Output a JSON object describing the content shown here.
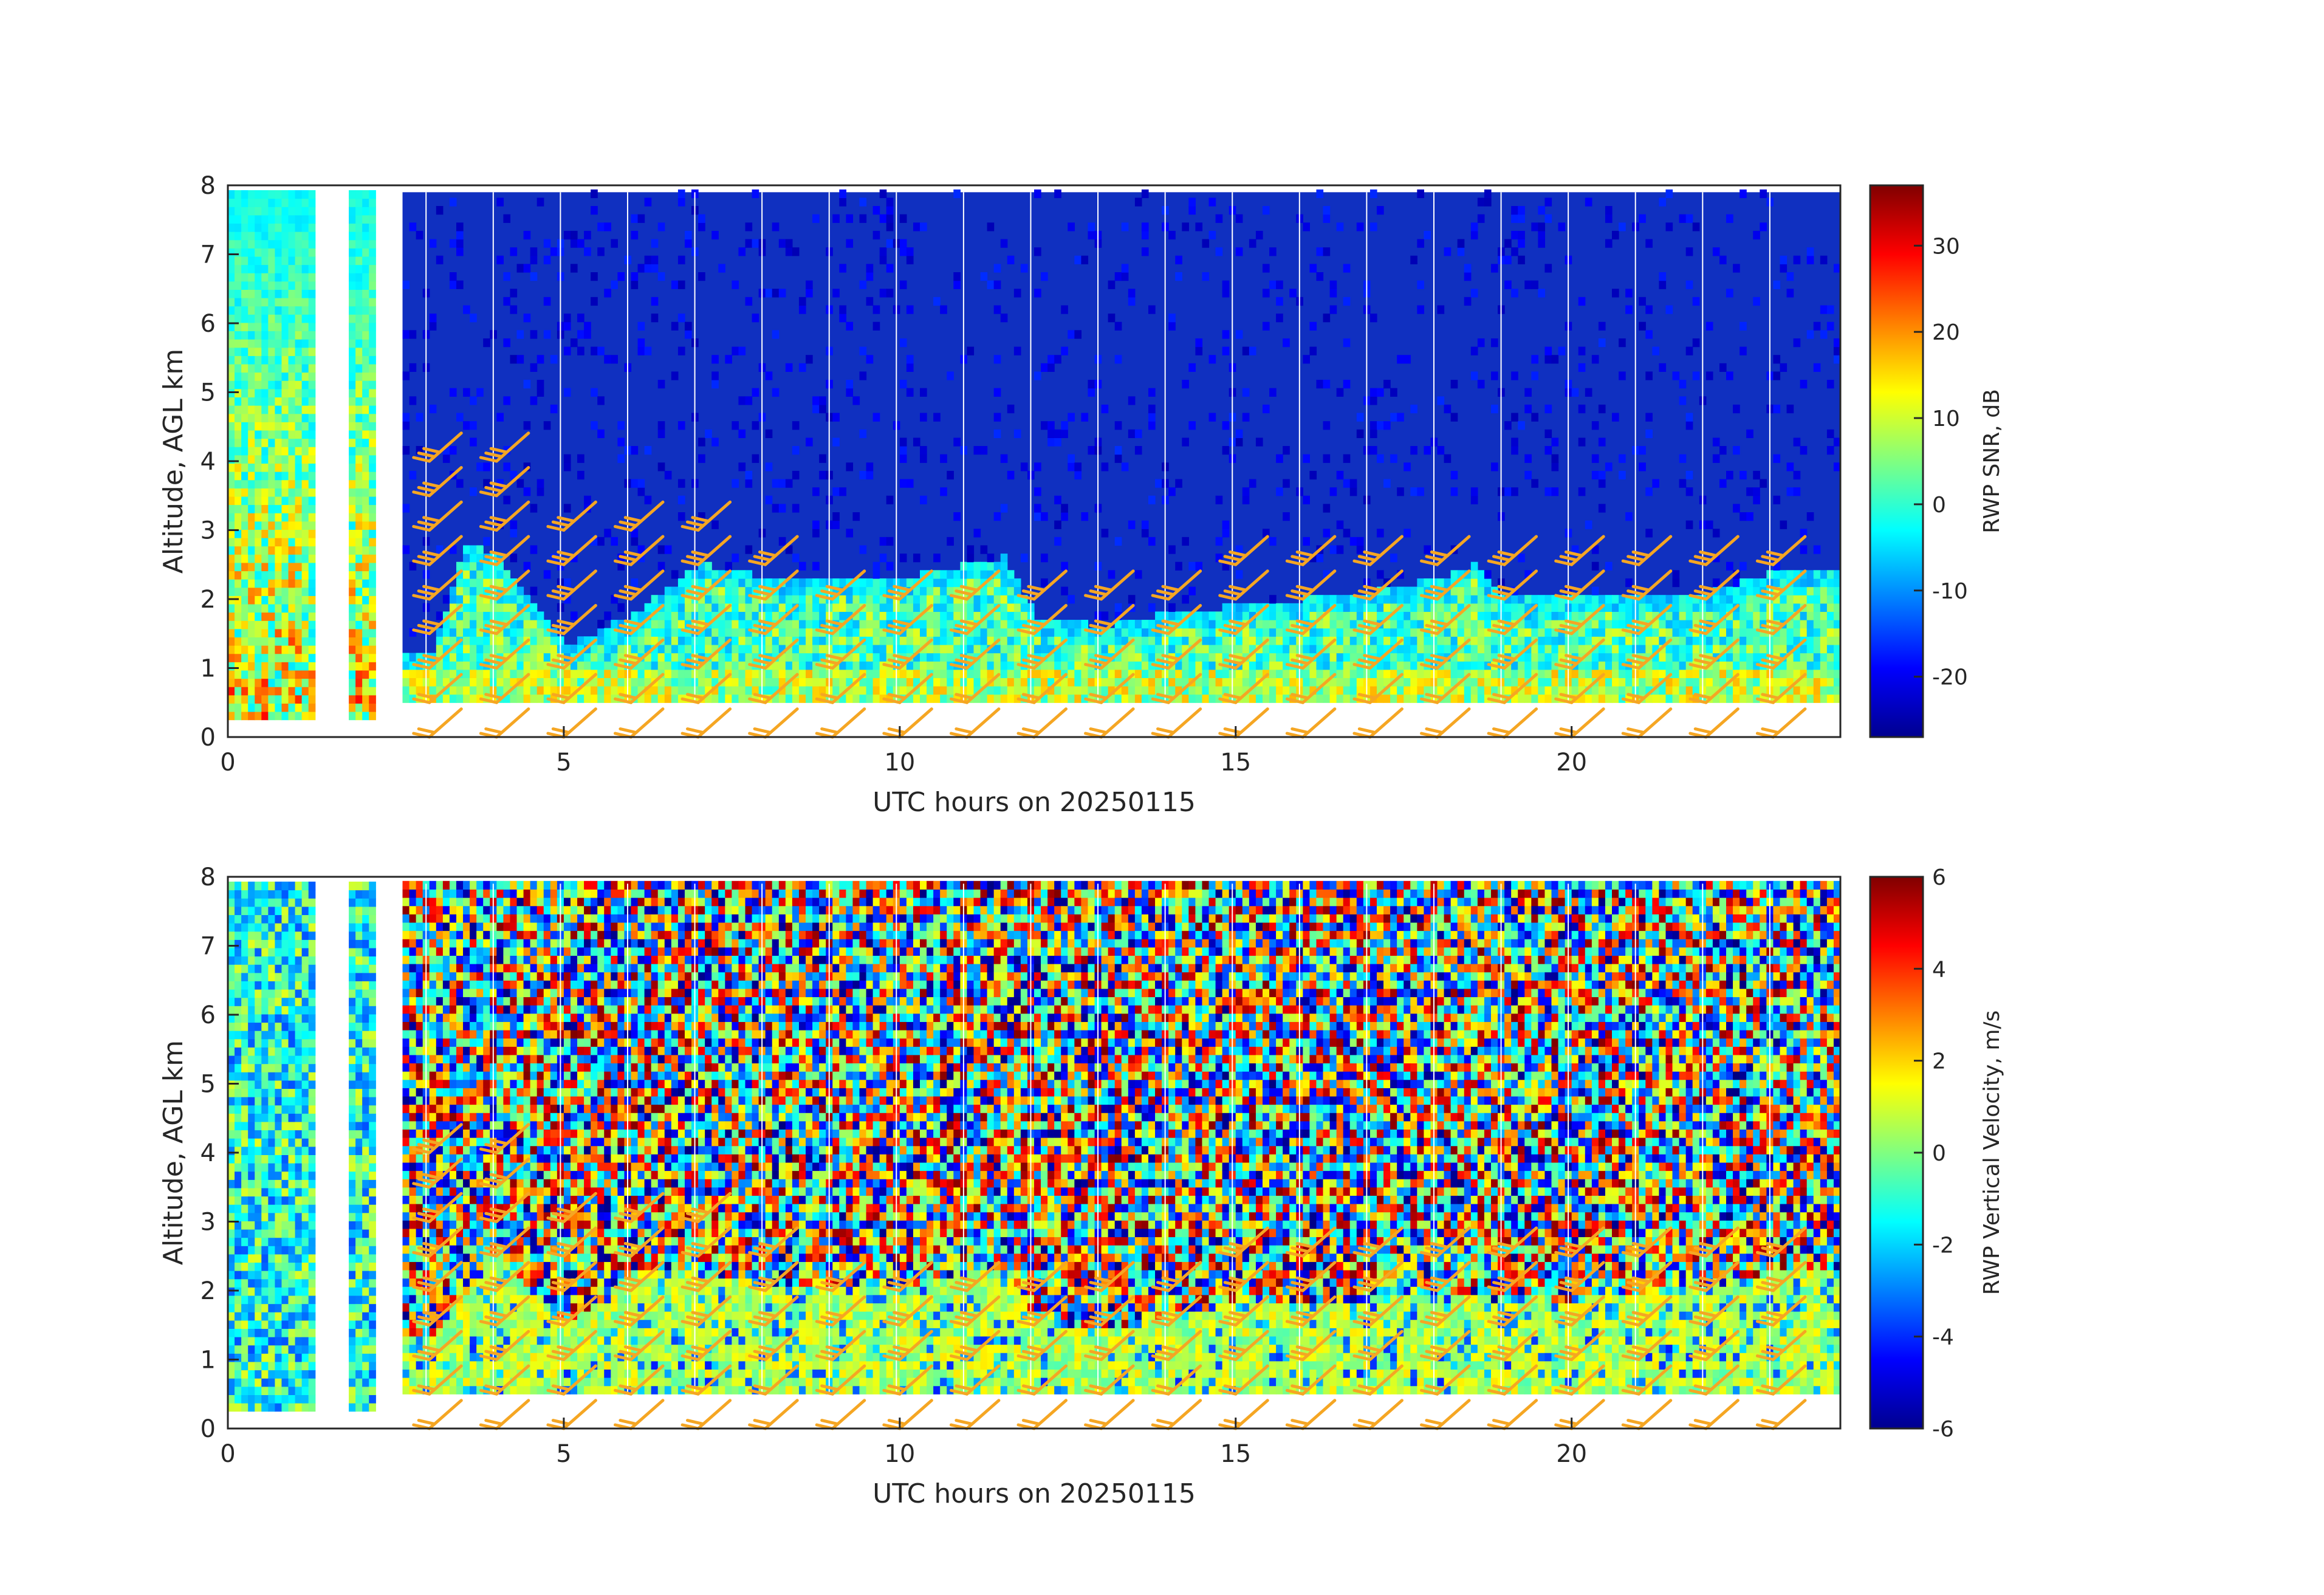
{
  "colors": {
    "barb": "#f5a623",
    "axis": "#262626",
    "background_field": "#1030c0",
    "gap": "#ffffff"
  },
  "colormap": "jet",
  "chart_data": [
    {
      "type": "heatmap",
      "panel": "top",
      "title": "",
      "xlabel": "UTC hours on 20250115",
      "ylabel": "Altitude, AGL km",
      "xlim": [
        0,
        24
      ],
      "ylim": [
        0,
        8
      ],
      "xticks": [
        0,
        5,
        10,
        15,
        20
      ],
      "yticks": [
        0,
        1,
        2,
        3,
        4,
        5,
        6,
        7,
        8
      ],
      "colorbar": {
        "label": "RWP SNR, dB",
        "range": [
          -27,
          37
        ],
        "ticks": [
          -20,
          -10,
          0,
          10,
          20,
          30
        ]
      },
      "data_gaps_hours": [
        [
          0.25,
          0.3
        ],
        [
          1.3,
          1.75
        ],
        [
          2.2,
          2.6
        ]
      ],
      "boundary_layer_top_km": {
        "x": [
          2.6,
          3,
          3.5,
          4,
          5,
          6,
          7,
          8,
          9,
          10,
          11,
          11.5,
          12,
          13,
          14,
          15,
          16,
          17,
          18,
          18.5,
          19,
          20,
          21,
          22,
          23,
          24
        ],
        "y": [
          0.9,
          0.9,
          2.5,
          2.3,
          1.0,
          1.5,
          2.2,
          2.0,
          2.0,
          2.0,
          2.2,
          2.3,
          1.4,
          1.3,
          1.5,
          1.6,
          1.7,
          1.8,
          2.0,
          2.2,
          1.7,
          1.7,
          1.8,
          1.8,
          2.1,
          2.1
        ]
      }
    },
    {
      "type": "heatmap",
      "panel": "bottom",
      "title": "",
      "xlabel": "UTC hours on 20250115",
      "ylabel": "Altitude, AGL km",
      "xlim": [
        0,
        24
      ],
      "ylim": [
        0,
        8
      ],
      "xticks": [
        0,
        5,
        10,
        15,
        20
      ],
      "yticks": [
        0,
        1,
        2,
        3,
        4,
        5,
        6,
        7,
        8
      ],
      "colorbar": {
        "label": "RWP Vertical Velocity, m/s",
        "range": [
          -6,
          6
        ],
        "ticks": [
          -6,
          -4,
          -2,
          0,
          2,
          4,
          6
        ]
      },
      "data_gaps_hours": [
        [
          0.25,
          0.3
        ],
        [
          1.3,
          1.75
        ],
        [
          2.2,
          2.6
        ]
      ],
      "boundary_layer_top_km": {
        "x": [
          2.6,
          3,
          4,
          5,
          6,
          7,
          8,
          9,
          10,
          11,
          11.5,
          12,
          13,
          14,
          15,
          16,
          17,
          18,
          19,
          20,
          21,
          22,
          23,
          24
        ],
        "y": [
          1.3,
          1.3,
          2.5,
          1.4,
          2.2,
          2.2,
          2.0,
          2.0,
          2.0,
          2.2,
          2.3,
          1.5,
          1.4,
          1.5,
          1.8,
          1.8,
          1.8,
          1.9,
          1.8,
          1.8,
          1.9,
          2.0,
          2.2,
          2.2
        ]
      }
    }
  ],
  "wind_barbs": {
    "times_hours": [
      3,
      4,
      5,
      6,
      7,
      8,
      9,
      10,
      11,
      12,
      13,
      14,
      15,
      16,
      17,
      18,
      19,
      20,
      21,
      22,
      23
    ],
    "heights_km": [
      0,
      0.5,
      1,
      1.5,
      2,
      2.5,
      3,
      3.5,
      4
    ],
    "max_height_km_by_time": [
      4,
      4,
      3,
      3,
      3,
      2.5,
      2,
      2,
      2,
      2,
      2,
      2,
      2.5,
      2.5,
      2.5,
      2.5,
      2.5,
      2.5,
      2.5,
      2.5,
      2.5
    ]
  }
}
